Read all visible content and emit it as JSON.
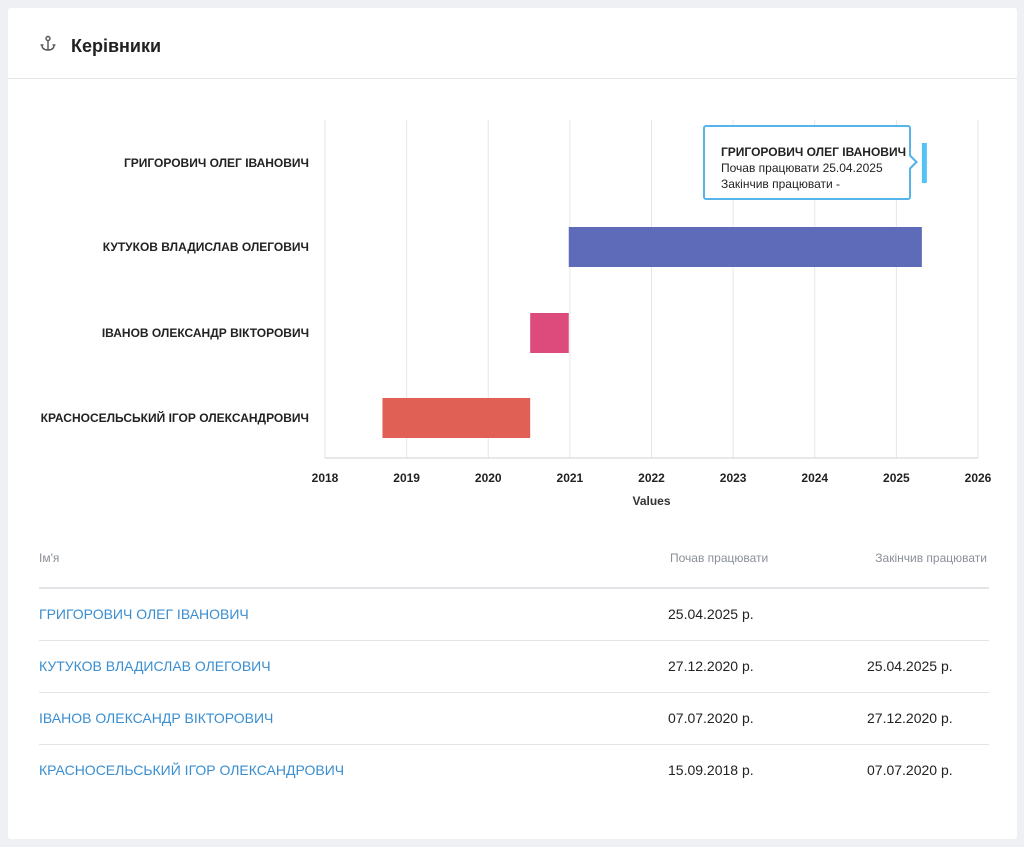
{
  "card": {
    "title": "Керівники",
    "icon": "anchor-icon"
  },
  "colors": {
    "bar_0": "#56c1f5",
    "bar_1": "#5d6bb9",
    "bar_2": "#dc4b7c",
    "bar_3": "#e06055",
    "tooltip_border": "#56b4ea",
    "link": "#3a8ed0"
  },
  "chart_data": {
    "type": "gantt",
    "xlabel": "Values",
    "xlim": [
      2018,
      2026
    ],
    "x_ticks": [
      "2018",
      "2019",
      "2020",
      "2021",
      "2022",
      "2023",
      "2024",
      "2025",
      "2026"
    ],
    "grid": true,
    "categories": [
      "ГРИГОРОВИЧ ОЛЕГ ІВАНОВИЧ",
      "КУТУКОВ ВЛАДИСЛАВ ОЛЕГОВИЧ",
      "ІВАНОВ ОЛЕКСАНДР ВІКТОРОВИЧ",
      "КРАСНОСЕЛЬСЬКИЙ ІГОР ОЛЕКСАНДРОВИЧ"
    ],
    "intervals": [
      {
        "start": "2025-04-25",
        "end": null
      },
      {
        "start": "2020-12-27",
        "end": "2025-04-25"
      },
      {
        "start": "2020-07-07",
        "end": "2020-12-27"
      },
      {
        "start": "2018-09-15",
        "end": "2020-07-07"
      }
    ]
  },
  "tooltip": {
    "title": "ГРИГОРОВИЧ ОЛЕГ ІВАНОВИЧ",
    "start_line": "Почав працювати 25.04.2025",
    "end_line": "Закінчив працювати -"
  },
  "table": {
    "headers": {
      "name": "Ім'я",
      "start": "Почав працювати",
      "end": "Закінчив працювати"
    },
    "rows": [
      {
        "name": "ГРИГОРОВИЧ ОЛЕГ ІВАНОВИЧ",
        "start": "25.04.2025 р.",
        "end": ""
      },
      {
        "name": "КУТУКОВ ВЛАДИСЛАВ ОЛЕГОВИЧ",
        "start": "27.12.2020 р.",
        "end": "25.04.2025 р."
      },
      {
        "name": "ІВАНОВ ОЛЕКСАНДР ВІКТОРОВИЧ",
        "start": "07.07.2020 р.",
        "end": "27.12.2020 р."
      },
      {
        "name": "КРАСНОСЕЛЬСЬКИЙ ІГОР ОЛЕКСАНДРОВИЧ",
        "start": "15.09.2018 р.",
        "end": "07.07.2020 р."
      }
    ]
  }
}
